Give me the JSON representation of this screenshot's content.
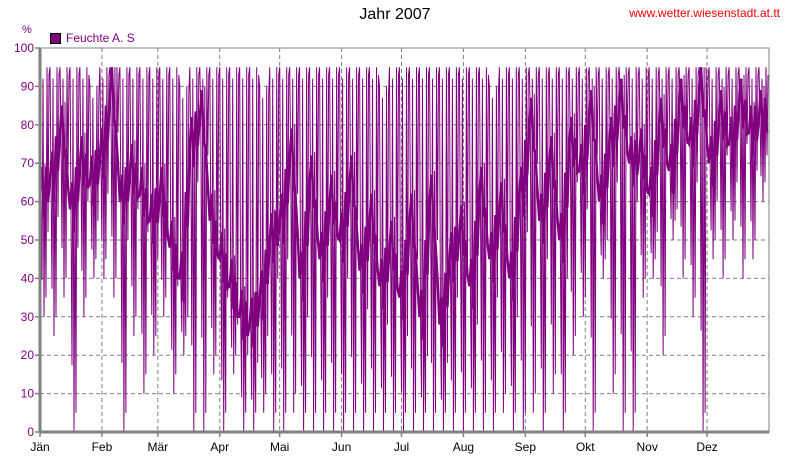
{
  "header": {
    "title": "Jahr 2007",
    "url": "www.wetter.wiesenstadt.at.tt",
    "unit": "%"
  },
  "colors": {
    "series": "#800080",
    "grid": "#808080",
    "url": "#ff0000"
  },
  "chart_data": {
    "type": "line",
    "title": "Jahr 2007",
    "ylabel": "%",
    "ylim": [
      0,
      100
    ],
    "yticks": [
      0,
      10,
      20,
      30,
      40,
      50,
      60,
      70,
      80,
      90,
      100
    ],
    "xlim_days": [
      0,
      365
    ],
    "months": [
      {
        "label": "Jän",
        "day": 0
      },
      {
        "label": "Feb",
        "day": 31
      },
      {
        "label": "Mär",
        "day": 59
      },
      {
        "label": "Apr",
        "day": 90
      },
      {
        "label": "Mai",
        "day": 120
      },
      {
        "label": "Jun",
        "day": 151
      },
      {
        "label": "Jul",
        "day": 181
      },
      {
        "label": "Aug",
        "day": 212
      },
      {
        "label": "Sep",
        "day": 243
      },
      {
        "label": "Okt",
        "day": 273
      },
      {
        "label": "Nov",
        "day": 304
      },
      {
        "label": "Dez",
        "day": 334
      }
    ],
    "grid": true,
    "legend": {
      "label": "Feuchte A. S",
      "placement": "top-left"
    },
    "step_days": 5,
    "mean": [
      62,
      66,
      78,
      58,
      70,
      65,
      72,
      88,
      60,
      68,
      62,
      55,
      62,
      48,
      40,
      75,
      82,
      55,
      45,
      38,
      30,
      28,
      35,
      50,
      55,
      72,
      40,
      65,
      45,
      60,
      50,
      65,
      42,
      55,
      38,
      48,
      35,
      55,
      30,
      60,
      28,
      45,
      52,
      38,
      62,
      45,
      58,
      40,
      62,
      80,
      55,
      70,
      50,
      75,
      68,
      82,
      60,
      75,
      85,
      70,
      72,
      62,
      80,
      68,
      85,
      75,
      88,
      70,
      82,
      75,
      85,
      78,
      82
    ],
    "min": [
      30,
      25,
      35,
      0,
      30,
      40,
      40,
      35,
      0,
      25,
      10,
      20,
      30,
      10,
      20,
      0,
      0,
      15,
      0,
      15,
      0,
      0,
      5,
      0,
      0,
      5,
      0,
      0,
      0,
      0,
      0,
      0,
      0,
      0,
      0,
      0,
      0,
      0,
      0,
      0,
      0,
      0,
      0,
      0,
      0,
      0,
      5,
      0,
      0,
      5,
      0,
      10,
      0,
      20,
      30,
      0,
      40,
      10,
      0,
      0,
      35,
      40,
      20,
      50,
      40,
      30,
      0,
      45,
      40,
      50,
      40,
      45,
      60
    ],
    "max": [
      95,
      95,
      95,
      95,
      95,
      90,
      95,
      95,
      95,
      95,
      95,
      95,
      95,
      95,
      90,
      95,
      95,
      95,
      95,
      95,
      95,
      95,
      90,
      95,
      95,
      95,
      95,
      95,
      95,
      95,
      95,
      95,
      95,
      95,
      90,
      95,
      95,
      95,
      95,
      95,
      95,
      95,
      95,
      95,
      95,
      90,
      95,
      95,
      95,
      95,
      95,
      95,
      95,
      95,
      95,
      95,
      95,
      95,
      95,
      95,
      95,
      95,
      95,
      95,
      95,
      95,
      95,
      95,
      95,
      95,
      95,
      95,
      95
    ]
  }
}
